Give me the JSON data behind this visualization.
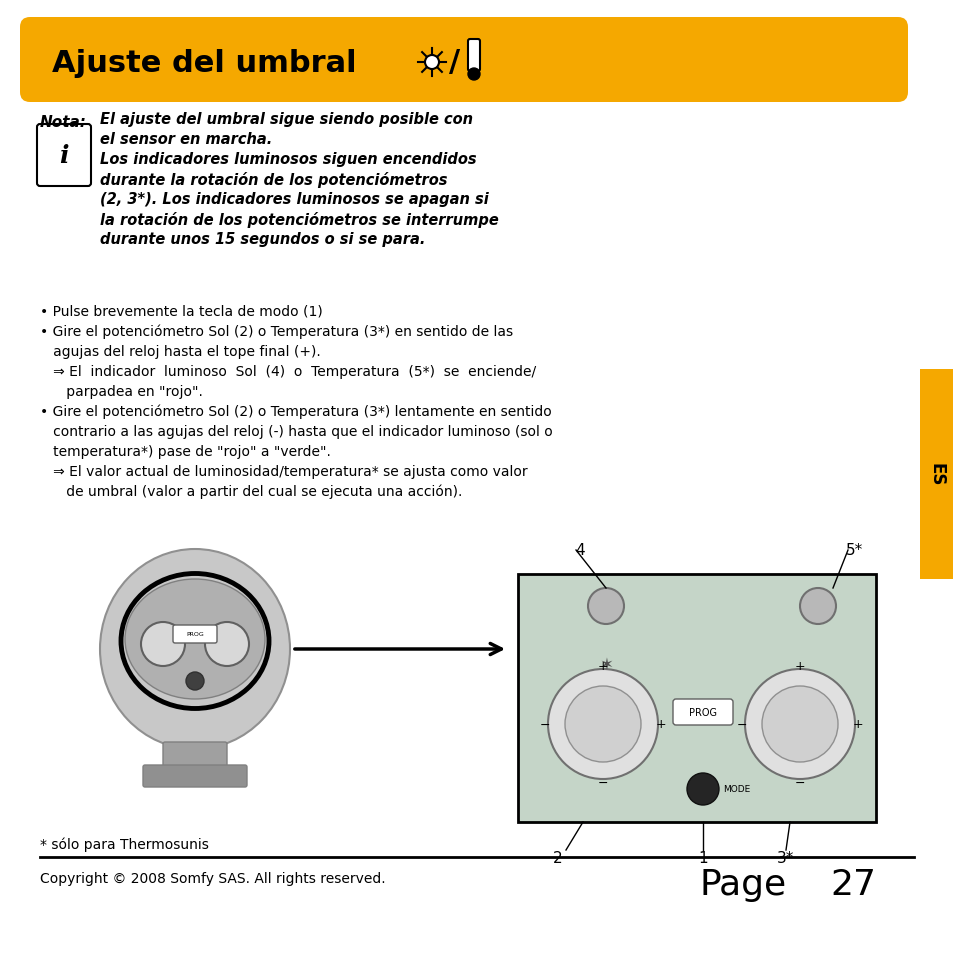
{
  "title_text": "Ajuste del umbral",
  "title_bg_color": "#F5A800",
  "title_text_color": "#000000",
  "page_bg_color": "#FFFFFF",
  "sidebar_color": "#F5A800",
  "nota_label": "Nota:",
  "nota_bold_text1": "El ajuste del umbral sigue siendo posible con",
  "nota_bold_text2": "el sensor en marcha.",
  "nota_bold_text3": "Los indicadores luminosos siguen encendidos",
  "nota_bold_text4": "durante la rotación de los potenciómetros",
  "nota_bold_text5": "(2, 3*). Los indicadores luminosos se apagan si",
  "nota_bold_text6": "la rotación de los potenciómetros se interrumpe",
  "nota_bold_text7": "durante unos 15 segundos o si se para.",
  "bullet1": "• Pulse brevemente la tecla de modo (1)",
  "bullet2": "• Gire el potenciómetro Sol (2) o Temperatura (3*) en sentido de las",
  "bullet2b": "   agujas del reloj hasta el tope final (+).",
  "arrow1": "   ⇒ El  indicador  luminoso  Sol  (4)  o  Temperatura  (5*)  se  enciende/",
  "arrow1b": "      parpadea en \"rojo\".",
  "bullet3": "• Gire el potenciómetro Sol (2) o Temperatura (3*) lentamente en sentido",
  "bullet3b": "   contrario a las agujas del reloj (-) hasta que el indicador luminoso (sol o",
  "bullet3c": "   temperatura*) pase de \"rojo\" a \"verde\".",
  "arrow2": "   ⇒ El valor actual de luminosidad/temperatura* se ajusta como valor",
  "arrow2b": "      de umbral (valor a partir del cual se ejecuta una acción).",
  "footnote": "* sólo para Thermosunis",
  "copyright": "Copyright © 2008 Somfy SAS. All rights reserved.",
  "page_label": "Page",
  "page_number": "27",
  "es_label": "ES",
  "label4": "4",
  "label5star": "5*",
  "label2": "2",
  "label1": "1",
  "label3star": "3*"
}
